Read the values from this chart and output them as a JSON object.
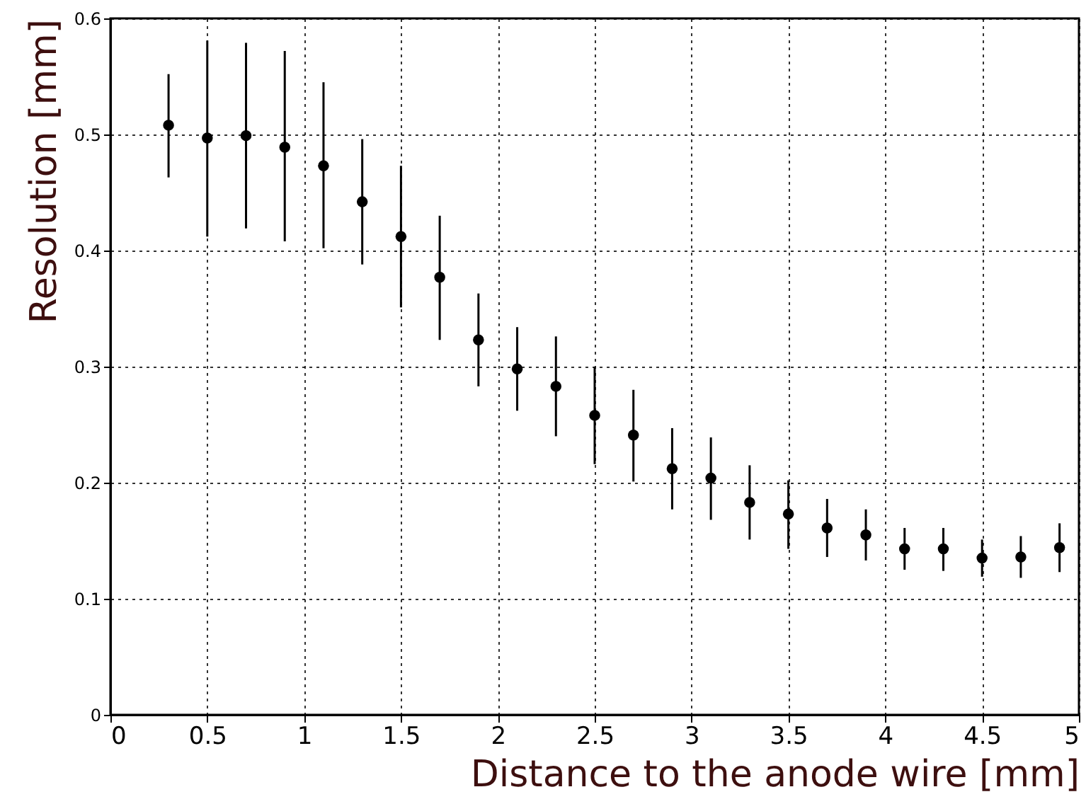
{
  "chart_data": {
    "type": "scatter",
    "xlabel": "Distance to the anode wire [mm]",
    "ylabel": "Resolution [mm]",
    "x": [
      0.3,
      0.5,
      0.7,
      0.9,
      1.1,
      1.3,
      1.5,
      1.7,
      1.9,
      2.1,
      2.3,
      2.5,
      2.7,
      2.9,
      3.1,
      3.3,
      3.5,
      3.7,
      3.9,
      4.1,
      4.3,
      4.5,
      4.7,
      4.9
    ],
    "series": [
      {
        "color": "#000000",
        "marker": "circle",
        "values": [
          0.508,
          0.497,
          0.499,
          0.489,
          0.473,
          0.442,
          0.412,
          0.377,
          0.323,
          0.298,
          0.283,
          0.258,
          0.241,
          0.212,
          0.204,
          0.183,
          0.173,
          0.161,
          0.155,
          0.143,
          0.143,
          0.135,
          0.136,
          0.144
        ],
        "errors": [
          [
            0.463,
            0.552
          ],
          [
            0.412,
            0.581
          ],
          [
            0.419,
            0.579
          ],
          [
            0.408,
            0.572
          ],
          [
            0.402,
            0.545
          ],
          [
            0.388,
            0.496
          ],
          [
            0.351,
            0.473
          ],
          [
            0.323,
            0.43
          ],
          [
            0.283,
            0.363
          ],
          [
            0.262,
            0.334
          ],
          [
            0.24,
            0.326
          ],
          [
            0.216,
            0.3
          ],
          [
            0.201,
            0.28
          ],
          [
            0.177,
            0.247
          ],
          [
            0.168,
            0.239
          ],
          [
            0.151,
            0.215
          ],
          [
            0.143,
            0.202
          ],
          [
            0.136,
            0.186
          ],
          [
            0.133,
            0.177
          ],
          [
            0.125,
            0.161
          ],
          [
            0.124,
            0.161
          ],
          [
            0.119,
            0.151
          ],
          [
            0.118,
            0.154
          ],
          [
            0.123,
            0.165
          ]
        ]
      }
    ],
    "xlim": [
      0,
      5
    ],
    "ylim": [
      0,
      0.6
    ],
    "xticks": [
      0,
      0.5,
      1,
      1.5,
      2,
      2.5,
      3,
      3.5,
      4,
      4.5,
      5
    ],
    "yticks": [
      0,
      0.1,
      0.2,
      0.3,
      0.4,
      0.5,
      0.6
    ],
    "grid": true
  }
}
